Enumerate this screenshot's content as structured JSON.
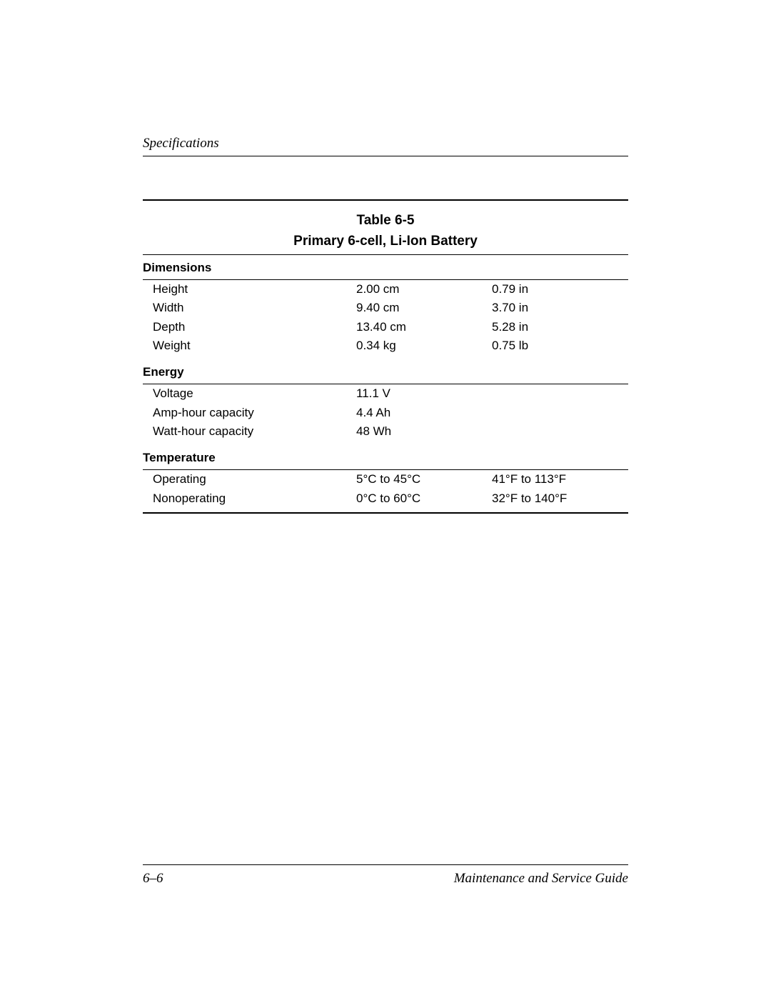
{
  "header": {
    "section": "Specifications"
  },
  "table": {
    "caption_line1": "Table 6-5",
    "caption_line2": "Primary 6-cell, Li-Ion Battery",
    "sections": [
      {
        "title": "Dimensions",
        "rows": [
          {
            "label": "Height",
            "metric": "2.00 cm",
            "imperial": "0.79 in"
          },
          {
            "label": "Width",
            "metric": "9.40 cm",
            "imperial": "3.70 in"
          },
          {
            "label": "Depth",
            "metric": "13.40 cm",
            "imperial": "5.28 in"
          },
          {
            "label": "Weight",
            "metric": "0.34 kg",
            "imperial": "0.75 lb"
          }
        ]
      },
      {
        "title": "Energy",
        "rows": [
          {
            "label": "Voltage",
            "metric": "11.1 V",
            "imperial": ""
          },
          {
            "label": "Amp-hour capacity",
            "metric": "4.4 Ah",
            "imperial": ""
          },
          {
            "label": "Watt-hour capacity",
            "metric": "48 Wh",
            "imperial": ""
          }
        ]
      },
      {
        "title": "Temperature",
        "rows": [
          {
            "label": "Operating",
            "metric": "5°C to 45°C",
            "imperial": "41°F to 113°F"
          },
          {
            "label": "Nonoperating",
            "metric": "0°C to 60°C",
            "imperial": "32°F to 140°F"
          }
        ]
      }
    ]
  },
  "footer": {
    "page": "6–6",
    "book": "Maintenance and Service Guide"
  }
}
